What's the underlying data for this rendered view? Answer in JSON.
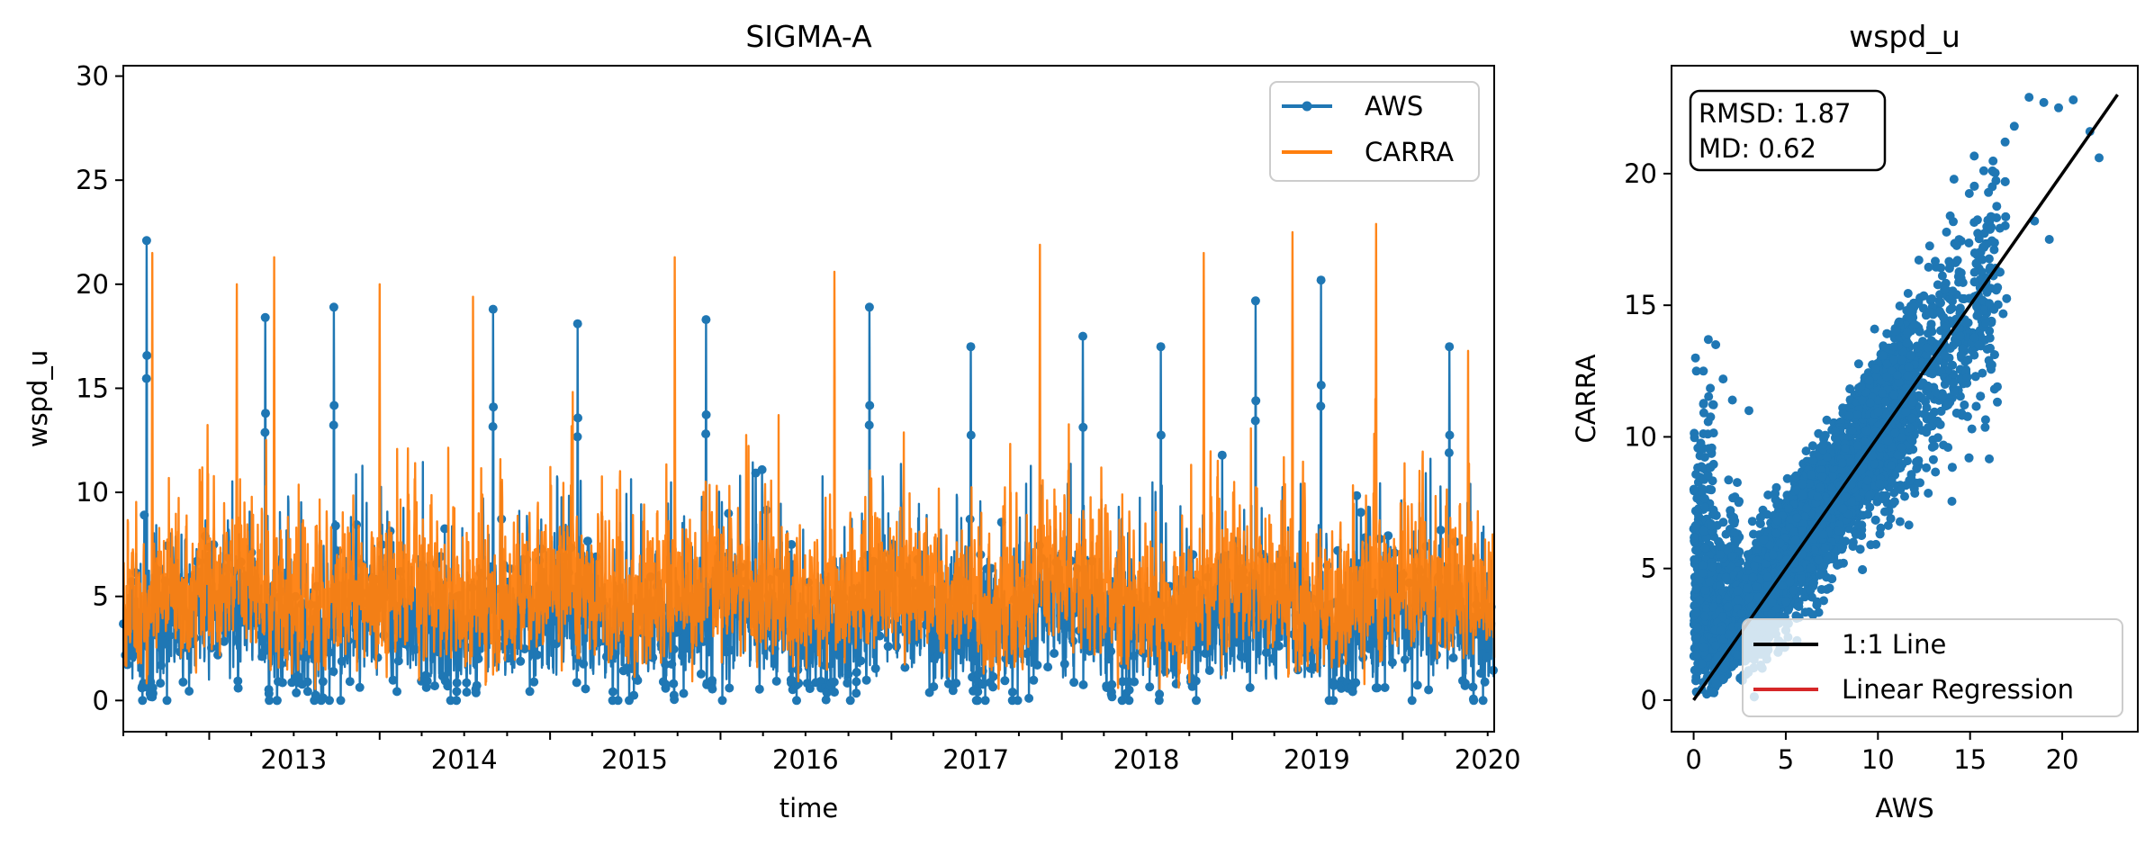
{
  "chart_data": [
    {
      "type": "line",
      "title": "SIGMA-A",
      "xlabel": "time",
      "ylabel": "wspd_u",
      "xlim": [
        "2012-07-01",
        "2020-07-15"
      ],
      "ylim": [
        -1.5,
        30.5
      ],
      "x_ticks": [
        "2013",
        "2014",
        "2015",
        "2016",
        "2017",
        "2018",
        "2019",
        "2020"
      ],
      "y_ticks": [
        0,
        5,
        10,
        15,
        20,
        25,
        30
      ],
      "grid": false,
      "legend": "top-right",
      "series": [
        {
          "name": "AWS",
          "color": "#1f77b4",
          "marker": "point",
          "peaks": [
            {
              "x": "2012-08-20",
              "y": 22.1
            },
            {
              "x": "2013-05-01",
              "y": 18.4
            },
            {
              "x": "2013-09-25",
              "y": 18.9
            },
            {
              "x": "2014-09-01",
              "y": 18.8
            },
            {
              "x": "2015-03-01",
              "y": 18.1
            },
            {
              "x": "2015-12-01",
              "y": 18.3
            },
            {
              "x": "2016-11-15",
              "y": 18.9
            },
            {
              "x": "2017-06-20",
              "y": 17.0
            },
            {
              "x": "2018-02-15",
              "y": 17.5
            },
            {
              "x": "2018-08-01",
              "y": 17.0
            },
            {
              "x": "2019-02-20",
              "y": 19.2
            },
            {
              "x": "2019-07-10",
              "y": 20.2
            },
            {
              "x": "2020-04-10",
              "y": 17.0
            }
          ],
          "typical_range": [
            0,
            12
          ]
        },
        {
          "name": "CARRA",
          "color": "#ff7f0e",
          "marker": "none",
          "peaks": [
            {
              "x": "2012-09-01",
              "y": 21.5
            },
            {
              "x": "2013-03-01",
              "y": 20.0
            },
            {
              "x": "2013-05-20",
              "y": 21.3
            },
            {
              "x": "2014-01-01",
              "y": 20.0
            },
            {
              "x": "2014-07-20",
              "y": 19.4
            },
            {
              "x": "2015-09-25",
              "y": 21.3
            },
            {
              "x": "2016-09-01",
              "y": 20.6
            },
            {
              "x": "2017-11-15",
              "y": 21.9
            },
            {
              "x": "2018-11-01",
              "y": 21.5
            },
            {
              "x": "2019-05-10",
              "y": 22.5
            },
            {
              "x": "2019-11-05",
              "y": 22.9
            },
            {
              "x": "2020-05-20",
              "y": 16.8
            }
          ],
          "typical_range": [
            1,
            11
          ]
        }
      ]
    },
    {
      "type": "scatter",
      "title": "wspd_u",
      "xlabel": "AWS",
      "ylabel": "CARRA",
      "xlim": [
        -1.2,
        24.1
      ],
      "ylim": [
        -1.2,
        24.1
      ],
      "x_ticks": [
        0,
        5,
        10,
        15,
        20
      ],
      "y_ticks": [
        0,
        5,
        10,
        15,
        20
      ],
      "grid": false,
      "legend": "bottom-right",
      "stats": {
        "rmsd": "RMSD: 1.87",
        "md": "MD: 0.62"
      },
      "series": [
        {
          "name": "1:1 Line",
          "color": "#000000",
          "from": [
            0,
            0
          ],
          "to": [
            23,
            23
          ]
        },
        {
          "name": "Linear Regression",
          "color": "#d62728"
        }
      ],
      "point_color": "#1f77b4",
      "outliers": [
        [
          18.2,
          22.9
        ],
        [
          19.0,
          22.7
        ],
        [
          19.8,
          22.5
        ],
        [
          20.6,
          22.8
        ],
        [
          21.5,
          21.6
        ],
        [
          17.4,
          21.8
        ],
        [
          16.9,
          21.2
        ],
        [
          19.3,
          17.5
        ],
        [
          16.2,
          19.5
        ],
        [
          22.0,
          20.6
        ],
        [
          18.5,
          18.2
        ],
        [
          13.8,
          9.6
        ],
        [
          15.1,
          10.3
        ],
        [
          12.2,
          9.1
        ],
        [
          0.1,
          13.0
        ],
        [
          0.8,
          13.7
        ],
        [
          1.2,
          13.5
        ],
        [
          2.1,
          11.4
        ],
        [
          3.0,
          11.0
        ],
        [
          1.6,
          12.2
        ]
      ]
    }
  ]
}
